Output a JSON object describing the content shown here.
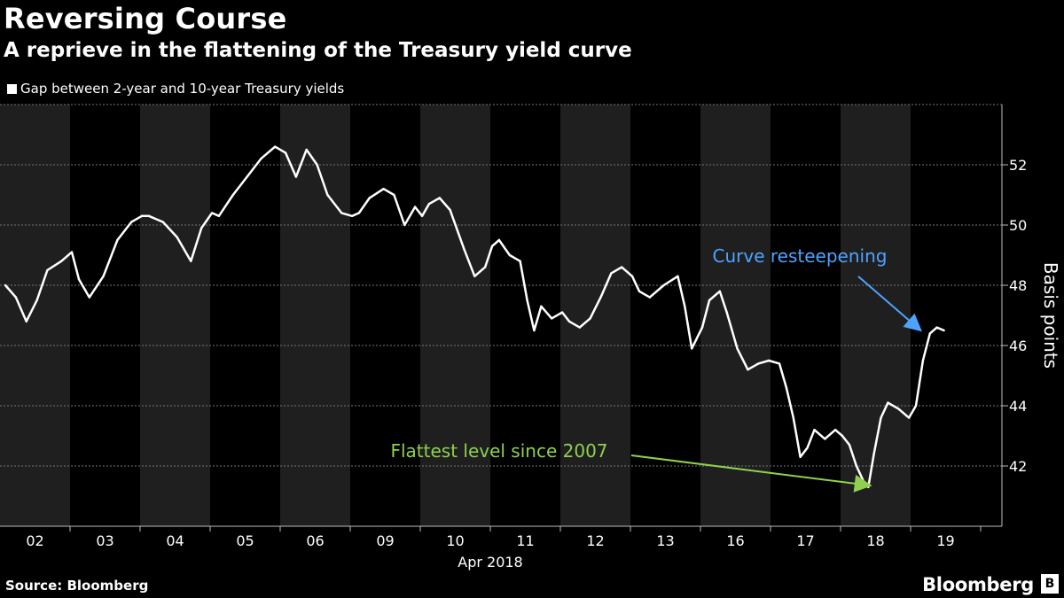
{
  "header": {
    "title": "Reversing Course",
    "subtitle": "A reprieve in the flattening of the Treasury yield curve"
  },
  "legend": {
    "label": "Gap between 2-year and 10-year Treasury yields"
  },
  "footer": {
    "source": "Source: Bloomberg",
    "brand": "Bloomberg",
    "brand_mark": "B"
  },
  "colors": {
    "background": "#000000",
    "band": "#1f1f1f",
    "series": "#ffffff",
    "annotation_blue": "#4da3ff",
    "annotation_green": "#8fd14f"
  },
  "chart_data": {
    "type": "line",
    "title": "Reversing Course",
    "subtitle": "A reprieve in the flattening of the Treasury yield curve",
    "xlabel": "Apr 2018",
    "ylabel": "Basis points",
    "categories": [
      "02",
      "03",
      "04",
      "05",
      "06",
      "09",
      "10",
      "11",
      "12",
      "13",
      "16",
      "17",
      "18",
      "19"
    ],
    "ylim": [
      40,
      54
    ],
    "yticks": [
      42,
      44,
      46,
      48,
      50,
      52
    ],
    "grid": true,
    "legend_position": "top-left",
    "series": [
      {
        "name": "Gap between 2-year and 10-year Treasury yields",
        "points": [
          {
            "x": 0.0,
            "y": 48.0
          },
          {
            "x": 0.15,
            "y": 47.6
          },
          {
            "x": 0.3,
            "y": 46.8
          },
          {
            "x": 0.45,
            "y": 47.5
          },
          {
            "x": 0.6,
            "y": 48.5
          },
          {
            "x": 0.8,
            "y": 48.8
          },
          {
            "x": 0.95,
            "y": 49.1
          },
          {
            "x": 1.05,
            "y": 48.2
          },
          {
            "x": 1.2,
            "y": 47.6
          },
          {
            "x": 1.4,
            "y": 48.3
          },
          {
            "x": 1.6,
            "y": 49.5
          },
          {
            "x": 1.8,
            "y": 50.1
          },
          {
            "x": 1.95,
            "y": 50.3
          },
          {
            "x": 2.05,
            "y": 50.3
          },
          {
            "x": 2.25,
            "y": 50.1
          },
          {
            "x": 2.45,
            "y": 49.6
          },
          {
            "x": 2.65,
            "y": 48.8
          },
          {
            "x": 2.8,
            "y": 49.9
          },
          {
            "x": 2.95,
            "y": 50.4
          },
          {
            "x": 3.05,
            "y": 50.3
          },
          {
            "x": 3.25,
            "y": 51.0
          },
          {
            "x": 3.45,
            "y": 51.6
          },
          {
            "x": 3.65,
            "y": 52.2
          },
          {
            "x": 3.85,
            "y": 52.6
          },
          {
            "x": 4.0,
            "y": 52.4
          },
          {
            "x": 4.15,
            "y": 51.6
          },
          {
            "x": 4.3,
            "y": 52.5
          },
          {
            "x": 4.45,
            "y": 52.0
          },
          {
            "x": 4.6,
            "y": 51.0
          },
          {
            "x": 4.8,
            "y": 50.4
          },
          {
            "x": 4.95,
            "y": 50.3
          },
          {
            "x": 5.05,
            "y": 50.4
          },
          {
            "x": 5.2,
            "y": 50.9
          },
          {
            "x": 5.4,
            "y": 51.2
          },
          {
            "x": 5.55,
            "y": 51.0
          },
          {
            "x": 5.7,
            "y": 50.0
          },
          {
            "x": 5.85,
            "y": 50.6
          },
          {
            "x": 5.95,
            "y": 50.3
          },
          {
            "x": 6.05,
            "y": 50.7
          },
          {
            "x": 6.2,
            "y": 50.9
          },
          {
            "x": 6.35,
            "y": 50.5
          },
          {
            "x": 6.55,
            "y": 49.2
          },
          {
            "x": 6.7,
            "y": 48.3
          },
          {
            "x": 6.85,
            "y": 48.6
          },
          {
            "x": 6.95,
            "y": 49.3
          },
          {
            "x": 7.05,
            "y": 49.5
          },
          {
            "x": 7.2,
            "y": 49.0
          },
          {
            "x": 7.35,
            "y": 48.8
          },
          {
            "x": 7.45,
            "y": 47.5
          },
          {
            "x": 7.55,
            "y": 46.5
          },
          {
            "x": 7.65,
            "y": 47.3
          },
          {
            "x": 7.8,
            "y": 46.9
          },
          {
            "x": 7.95,
            "y": 47.1
          },
          {
            "x": 8.05,
            "y": 46.8
          },
          {
            "x": 8.2,
            "y": 46.6
          },
          {
            "x": 8.35,
            "y": 46.9
          },
          {
            "x": 8.5,
            "y": 47.6
          },
          {
            "x": 8.65,
            "y": 48.4
          },
          {
            "x": 8.8,
            "y": 48.6
          },
          {
            "x": 8.95,
            "y": 48.3
          },
          {
            "x": 9.05,
            "y": 47.8
          },
          {
            "x": 9.2,
            "y": 47.6
          },
          {
            "x": 9.4,
            "y": 48.0
          },
          {
            "x": 9.6,
            "y": 48.3
          },
          {
            "x": 9.7,
            "y": 47.3
          },
          {
            "x": 9.8,
            "y": 45.9
          },
          {
            "x": 9.95,
            "y": 46.6
          },
          {
            "x": 10.05,
            "y": 47.5
          },
          {
            "x": 10.2,
            "y": 47.8
          },
          {
            "x": 10.3,
            "y": 47.1
          },
          {
            "x": 10.45,
            "y": 45.9
          },
          {
            "x": 10.6,
            "y": 45.2
          },
          {
            "x": 10.75,
            "y": 45.4
          },
          {
            "x": 10.9,
            "y": 45.5
          },
          {
            "x": 11.05,
            "y": 45.4
          },
          {
            "x": 11.15,
            "y": 44.6
          },
          {
            "x": 11.25,
            "y": 43.6
          },
          {
            "x": 11.35,
            "y": 42.3
          },
          {
            "x": 11.45,
            "y": 42.6
          },
          {
            "x": 11.55,
            "y": 43.2
          },
          {
            "x": 11.7,
            "y": 42.9
          },
          {
            "x": 11.85,
            "y": 43.2
          },
          {
            "x": 11.95,
            "y": 43.0
          },
          {
            "x": 12.05,
            "y": 42.7
          },
          {
            "x": 12.15,
            "y": 42.0
          },
          {
            "x": 12.25,
            "y": 41.5
          },
          {
            "x": 12.32,
            "y": 41.3
          },
          {
            "x": 12.4,
            "y": 42.4
          },
          {
            "x": 12.5,
            "y": 43.6
          },
          {
            "x": 12.6,
            "y": 44.1
          },
          {
            "x": 12.75,
            "y": 43.9
          },
          {
            "x": 12.9,
            "y": 43.6
          },
          {
            "x": 13.0,
            "y": 44.0
          },
          {
            "x": 13.1,
            "y": 45.5
          },
          {
            "x": 13.2,
            "y": 46.4
          },
          {
            "x": 13.3,
            "y": 46.6
          },
          {
            "x": 13.4,
            "y": 46.5
          }
        ]
      }
    ],
    "annotations": [
      {
        "text": "Curve resteepening",
        "target": {
          "x": 13.0,
          "y": 46.3
        },
        "color": "#4da3ff"
      },
      {
        "text": "Flattest level since 2007",
        "target": {
          "x": 12.3,
          "y": 41.3
        },
        "color": "#8fd14f"
      }
    ]
  }
}
